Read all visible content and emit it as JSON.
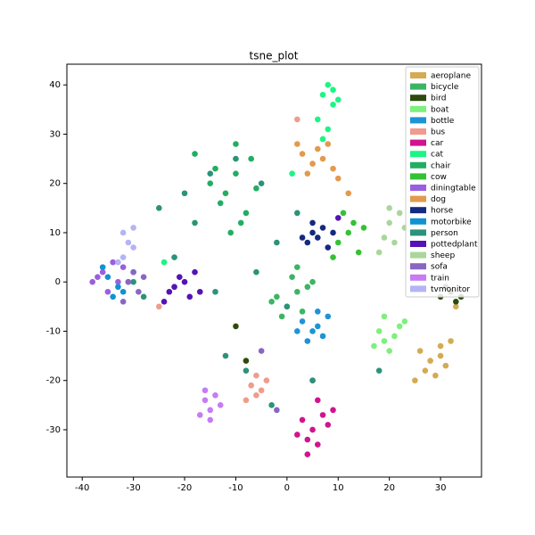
{
  "chart_data": {
    "type": "scatter",
    "title": "tsne_plot",
    "xlim": [
      -43,
      38
    ],
    "ylim": [
      -39.6,
      44.2
    ],
    "xticks": [
      -40,
      -30,
      -20,
      -10,
      0,
      10,
      20,
      30
    ],
    "yticks": [
      -30,
      -20,
      -10,
      0,
      10,
      20,
      30,
      40
    ],
    "legend": "upper right",
    "series": [
      {
        "name": "aeroplane",
        "color": "#d4ab52",
        "x": [
          26,
          28,
          30,
          31,
          29,
          27,
          25,
          32,
          30,
          33
        ],
        "values": [
          -14,
          -16,
          -13,
          -17,
          -19,
          -18,
          -20,
          -12,
          -15,
          -5
        ]
      },
      {
        "name": "bicycle",
        "color": "#3cb563",
        "x": [
          -2,
          0,
          2,
          3,
          -3,
          1,
          4,
          -1,
          2,
          5
        ],
        "values": [
          -3,
          -5,
          -2,
          -6,
          -4,
          1,
          -1,
          -7,
          3,
          0
        ]
      },
      {
        "name": "bird",
        "color": "#2e4a0c",
        "x": [
          30,
          32,
          33,
          31,
          34,
          -8,
          -10
        ],
        "values": [
          -3,
          -2,
          -4,
          -1,
          -3,
          -16,
          -9
        ]
      },
      {
        "name": "boat",
        "color": "#7df07d",
        "x": [
          18,
          19,
          21,
          20,
          22,
          17,
          19,
          23
        ],
        "values": [
          -10,
          -12,
          -11,
          -14,
          -9,
          -13,
          -7,
          -8
        ]
      },
      {
        "name": "bottle",
        "color": "#1e93d6",
        "x": [
          3,
          5,
          6,
          7,
          4,
          8,
          6,
          2
        ],
        "values": [
          -8,
          -10,
          -9,
          -11,
          -12,
          -7,
          -6,
          -10
        ]
      },
      {
        "name": "bus",
        "color": "#f09b8c",
        "x": [
          -7,
          -6,
          -5,
          -8,
          -6,
          -4,
          -25,
          2
        ],
        "values": [
          -21,
          -23,
          -22,
          -24,
          -19,
          -20,
          -5,
          33
        ]
      },
      {
        "name": "car",
        "color": "#d0148f",
        "x": [
          3,
          5,
          7,
          4,
          6,
          8,
          2,
          9,
          6,
          4,
          5
        ],
        "values": [
          -28,
          -30,
          -27,
          -32,
          -33,
          -29,
          -31,
          -26,
          -24,
          -35,
          -20
        ]
      },
      {
        "name": "cat",
        "color": "#1cf584",
        "x": [
          7,
          8,
          9,
          6,
          8,
          10,
          9,
          7,
          1,
          -24
        ],
        "values": [
          38,
          40,
          36,
          33,
          31,
          37,
          39,
          29,
          22,
          4
        ]
      },
      {
        "name": "chair",
        "color": "#22ad64",
        "x": [
          -15,
          -12,
          -10,
          -8,
          -13,
          -9,
          -7,
          -14,
          -11,
          -6,
          -18,
          -10
        ],
        "values": [
          20,
          18,
          22,
          14,
          16,
          12,
          25,
          23,
          10,
          19,
          26,
          28
        ]
      },
      {
        "name": "cow",
        "color": "#34c234",
        "x": [
          10,
          12,
          13,
          11,
          14,
          9,
          15
        ],
        "values": [
          8,
          10,
          12,
          14,
          6,
          5,
          11
        ]
      },
      {
        "name": "diningtable",
        "color": "#9a5fe0",
        "x": [
          -36,
          -34,
          -33,
          -37,
          -35,
          -32,
          -38
        ],
        "values": [
          2,
          4,
          0,
          1,
          -2,
          3,
          0
        ]
      },
      {
        "name": "dog",
        "color": "#e29a4e",
        "x": [
          3,
          5,
          7,
          9,
          6,
          4,
          8,
          10,
          2,
          12
        ],
        "values": [
          26,
          24,
          25,
          23,
          27,
          22,
          28,
          21,
          28,
          18
        ]
      },
      {
        "name": "horse",
        "color": "#132a7e",
        "x": [
          4,
          5,
          6,
          7,
          8,
          5,
          3,
          9
        ],
        "values": [
          8,
          10,
          9,
          11,
          7,
          12,
          9,
          10
        ]
      },
      {
        "name": "motorbike",
        "color": "#1192d2",
        "x": [
          -35,
          -33,
          -31,
          -30,
          -34,
          -32,
          -36
        ],
        "values": [
          1,
          -1,
          0,
          2,
          -3,
          -2,
          3
        ]
      },
      {
        "name": "person",
        "color": "#2a9378",
        "x": [
          -30,
          -25,
          -20,
          -15,
          -10,
          -5,
          0,
          5,
          -12,
          -8,
          -3,
          -18,
          -22,
          -28,
          -2,
          2,
          18,
          -14,
          -6
        ],
        "values": [
          0,
          15,
          18,
          22,
          25,
          20,
          -5,
          -20,
          -15,
          -18,
          -25,
          12,
          5,
          -3,
          8,
          14,
          -18,
          -2,
          2
        ]
      },
      {
        "name": "pottedplant",
        "color": "#5512b4",
        "x": [
          -22,
          -20,
          -19,
          -18,
          -23,
          -21,
          -17,
          -24,
          10
        ],
        "values": [
          -1,
          0,
          -3,
          2,
          -2,
          1,
          -2,
          -4,
          13
        ]
      },
      {
        "name": "sheep",
        "color": "#aad69c",
        "x": [
          19,
          20,
          21,
          22,
          18,
          20,
          23
        ],
        "values": [
          9,
          12,
          8,
          14,
          6,
          15,
          11
        ]
      },
      {
        "name": "sofa",
        "color": "#8a66c4",
        "x": [
          -31,
          -29,
          -30,
          -32,
          -28,
          -2,
          -5
        ],
        "values": [
          0,
          -2,
          2,
          -4,
          1,
          -26,
          -14
        ]
      },
      {
        "name": "train",
        "color": "#c67cf2",
        "x": [
          -16,
          -15,
          -14,
          -17,
          -13,
          -15,
          -16
        ],
        "values": [
          -24,
          -26,
          -23,
          -27,
          -25,
          -28,
          -22
        ]
      },
      {
        "name": "tvmonitor",
        "color": "#b4b4f4",
        "x": [
          -32,
          -31,
          -30,
          -32,
          -30,
          -33
        ],
        "values": [
          10,
          8,
          11,
          5,
          7,
          4
        ]
      }
    ]
  }
}
